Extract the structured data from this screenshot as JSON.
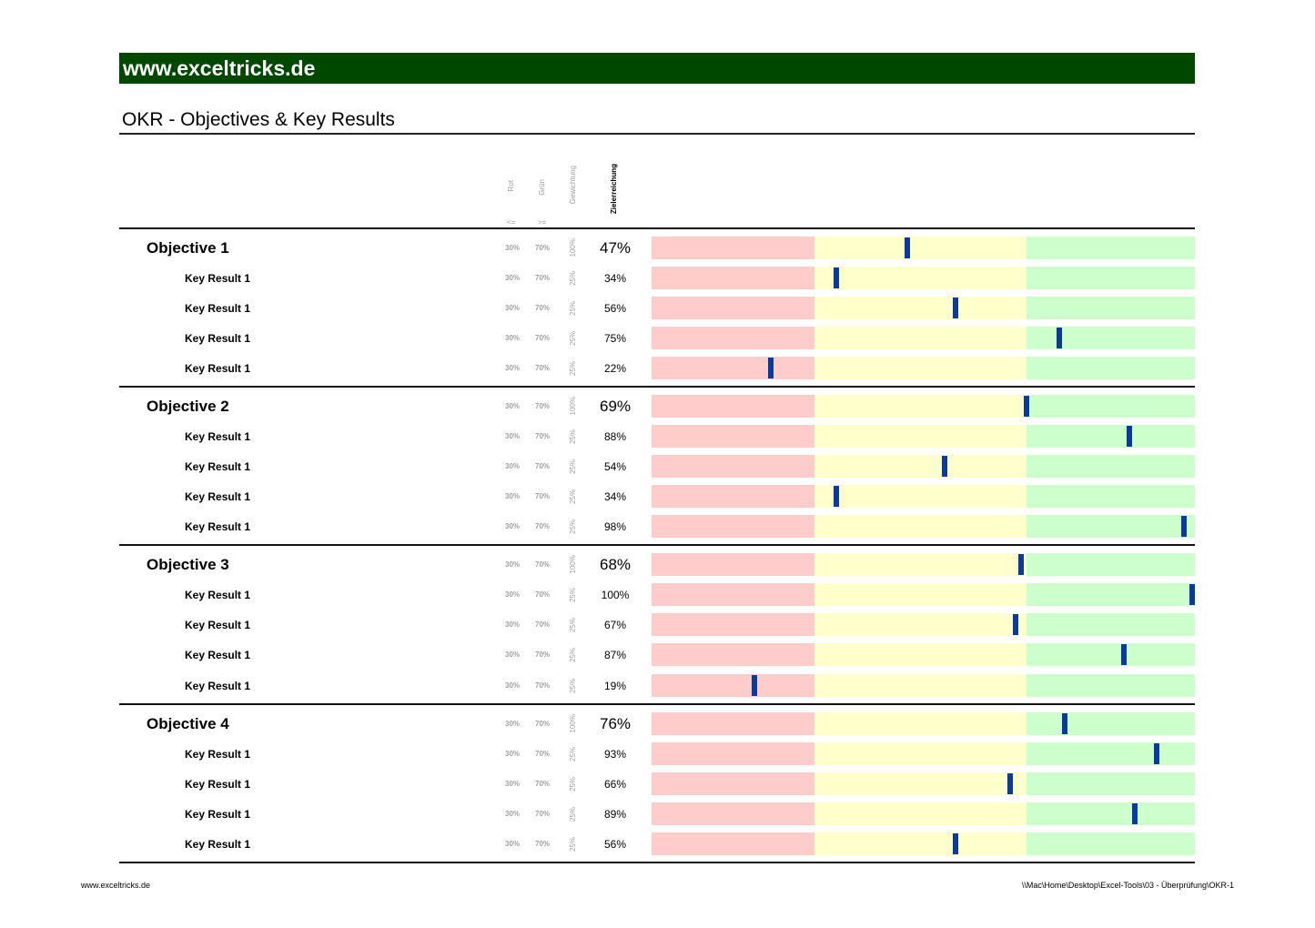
{
  "banner": "www.exceltricks.de",
  "title": "OKR - Objectives & Key Results",
  "columns": {
    "rot": "Rot",
    "rot_op": "<=",
    "gruen": "Grün",
    "gruen_op": ">=",
    "gewichtung": "Gewichtung",
    "zielerreichung": "Zielerreichung"
  },
  "colors": {
    "red": "#ffcccc",
    "yellow": "#ffffcc",
    "green": "#ccffcc",
    "marker": "#0a3a9a",
    "banner": "#004800"
  },
  "thresholds": {
    "red_max": 0.3,
    "green_min": 0.7
  },
  "objectives": [
    {
      "label": "Objective 1",
      "rot": "30%",
      "gruen": "70%",
      "weight": "100%",
      "pct": "47%",
      "value": 0.47,
      "key_results": [
        {
          "label": "Key Result 1",
          "rot": "30%",
          "gruen": "70%",
          "weight": "25%",
          "pct": "34%",
          "value": 0.34
        },
        {
          "label": "Key Result 1",
          "rot": "30%",
          "gruen": "70%",
          "weight": "25%",
          "pct": "56%",
          "value": 0.56
        },
        {
          "label": "Key Result 1",
          "rot": "30%",
          "gruen": "70%",
          "weight": "25%",
          "pct": "75%",
          "value": 0.75
        },
        {
          "label": "Key Result 1",
          "rot": "30%",
          "gruen": "70%",
          "weight": "25%",
          "pct": "22%",
          "value": 0.22
        }
      ]
    },
    {
      "label": "Objective 2",
      "rot": "30%",
      "gruen": "70%",
      "weight": "100%",
      "pct": "69%",
      "value": 0.69,
      "key_results": [
        {
          "label": "Key Result 1",
          "rot": "30%",
          "gruen": "70%",
          "weight": "25%",
          "pct": "88%",
          "value": 0.88
        },
        {
          "label": "Key Result 1",
          "rot": "30%",
          "gruen": "70%",
          "weight": "25%",
          "pct": "54%",
          "value": 0.54
        },
        {
          "label": "Key Result 1",
          "rot": "30%",
          "gruen": "70%",
          "weight": "25%",
          "pct": "34%",
          "value": 0.34
        },
        {
          "label": "Key Result 1",
          "rot": "30%",
          "gruen": "70%",
          "weight": "25%",
          "pct": "98%",
          "value": 0.98
        }
      ]
    },
    {
      "label": "Objective 3",
      "rot": "30%",
      "gruen": "70%",
      "weight": "100%",
      "pct": "68%",
      "value": 0.68,
      "key_results": [
        {
          "label": "Key Result 1",
          "rot": "30%",
          "gruen": "70%",
          "weight": "25%",
          "pct": "100%",
          "value": 1.0
        },
        {
          "label": "Key Result 1",
          "rot": "30%",
          "gruen": "70%",
          "weight": "25%",
          "pct": "67%",
          "value": 0.67
        },
        {
          "label": "Key Result 1",
          "rot": "30%",
          "gruen": "70%",
          "weight": "25%",
          "pct": "87%",
          "value": 0.87
        },
        {
          "label": "Key Result 1",
          "rot": "30%",
          "gruen": "70%",
          "weight": "25%",
          "pct": "19%",
          "value": 0.19
        }
      ]
    },
    {
      "label": "Objective 4",
      "rot": "30%",
      "gruen": "70%",
      "weight": "100%",
      "pct": "76%",
      "value": 0.76,
      "key_results": [
        {
          "label": "Key Result 1",
          "rot": "30%",
          "gruen": "70%",
          "weight": "25%",
          "pct": "93%",
          "value": 0.93
        },
        {
          "label": "Key Result 1",
          "rot": "30%",
          "gruen": "70%",
          "weight": "25%",
          "pct": "66%",
          "value": 0.66
        },
        {
          "label": "Key Result 1",
          "rot": "30%",
          "gruen": "70%",
          "weight": "25%",
          "pct": "89%",
          "value": 0.89
        },
        {
          "label": "Key Result 1",
          "rot": "30%",
          "gruen": "70%",
          "weight": "25%",
          "pct": "56%",
          "value": 0.56
        }
      ]
    }
  ],
  "footer": {
    "left": "www.exceltricks.de",
    "right": "\\\\Mac\\Home\\Desktop\\Excel-Tools\\03 - Überprüfung\\OKR-1"
  }
}
